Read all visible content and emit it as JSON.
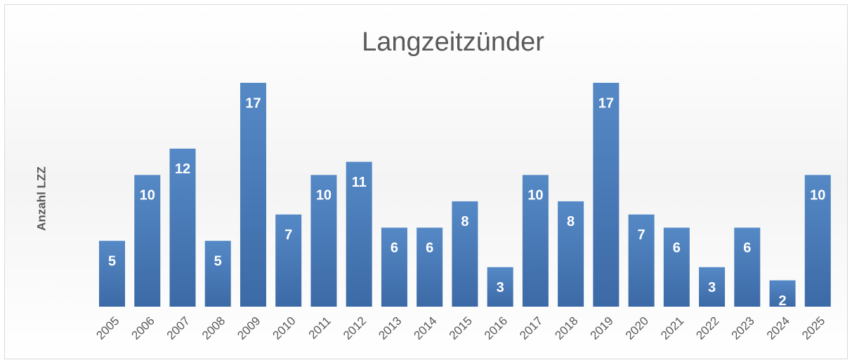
{
  "chart_data": {
    "type": "bar",
    "title": "Langzeitzünder",
    "y_label": "Anzahl LZZ",
    "categories": [
      "2005",
      "2006",
      "2007",
      "2008",
      "2009",
      "2010",
      "2011",
      "2012",
      "2013",
      "2014",
      "2015",
      "2016",
      "2017",
      "2018",
      "2019",
      "2020",
      "2021",
      "2022",
      "2023",
      "2024",
      "2025"
    ],
    "values": [
      5,
      10,
      12,
      5,
      17,
      7,
      10,
      11,
      6,
      6,
      8,
      3,
      10,
      8,
      17,
      7,
      6,
      3,
      6,
      2,
      10
    ],
    "color": "#4a7ebb",
    "ylim": [
      0,
      17
    ]
  }
}
